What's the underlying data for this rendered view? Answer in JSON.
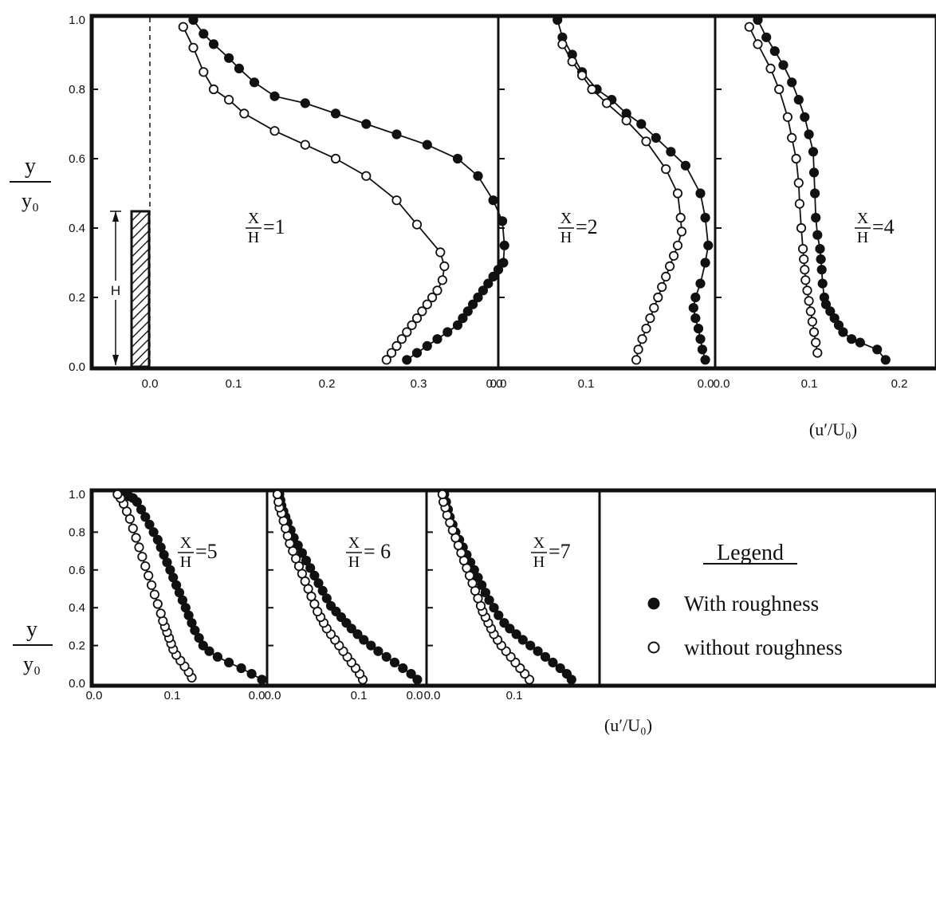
{
  "chart_data": [
    {
      "type": "line",
      "annotation": {
        "ratio_num": "X",
        "ratio_den": "H",
        "value": "=1"
      },
      "ylabel_num": "y",
      "ylabel_den": "y₀",
      "yticks": [
        "0.0",
        "0.2",
        "0.4",
        "0.6",
        "0.8",
        "1.0"
      ],
      "xticks": [
        "0.0",
        "0.1",
        "0.2",
        "0.3",
        "0.0"
      ],
      "ylim": [
        0,
        1
      ],
      "xlim": [
        -0.05,
        0.35
      ],
      "obstacle_label": "H",
      "series": [
        {
          "name": "With roughness",
          "x": [
            0.26,
            0.27,
            0.28,
            0.29,
            0.3,
            0.31,
            0.315,
            0.32,
            0.325,
            0.33,
            0.335,
            0.34,
            0.345,
            0.35,
            0.355,
            0.356,
            0.354,
            0.345,
            0.33,
            0.31,
            0.28,
            0.25,
            0.22,
            0.19,
            0.16,
            0.13,
            0.11,
            0.095,
            0.085,
            0.07,
            0.06,
            0.05
          ],
          "y": [
            0.02,
            0.04,
            0.06,
            0.08,
            0.1,
            0.12,
            0.14,
            0.16,
            0.18,
            0.2,
            0.22,
            0.24,
            0.26,
            0.28,
            0.3,
            0.35,
            0.42,
            0.48,
            0.55,
            0.6,
            0.64,
            0.67,
            0.7,
            0.73,
            0.76,
            0.78,
            0.82,
            0.86,
            0.89,
            0.93,
            0.96,
            1.0
          ]
        },
        {
          "name": "without roughness",
          "x": [
            0.24,
            0.245,
            0.25,
            0.255,
            0.26,
            0.265,
            0.27,
            0.275,
            0.28,
            0.285,
            0.29,
            0.295,
            0.297,
            0.293,
            0.27,
            0.25,
            0.22,
            0.19,
            0.16,
            0.13,
            0.1,
            0.085,
            0.07,
            0.06,
            0.05,
            0.04
          ],
          "y": [
            0.02,
            0.04,
            0.06,
            0.08,
            0.1,
            0.12,
            0.14,
            0.16,
            0.18,
            0.2,
            0.22,
            0.25,
            0.29,
            0.33,
            0.41,
            0.48,
            0.55,
            0.6,
            0.64,
            0.68,
            0.73,
            0.77,
            0.8,
            0.85,
            0.92,
            0.98
          ]
        }
      ]
    },
    {
      "type": "line",
      "annotation": {
        "ratio_num": "X",
        "ratio_den": "H",
        "value": "=2"
      },
      "xticks": [
        "0.0",
        "0.1",
        "0.0"
      ],
      "ylim": [
        0,
        1
      ],
      "xlim": [
        0,
        0.22
      ],
      "series": [
        {
          "name": "With roughness",
          "x": [
            0.21,
            0.207,
            0.205,
            0.203,
            0.2,
            0.198,
            0.2,
            0.205,
            0.21,
            0.213,
            0.21,
            0.205,
            0.19,
            0.175,
            0.16,
            0.145,
            0.13,
            0.115,
            0.1,
            0.085,
            0.075,
            0.065,
            0.06
          ],
          "y": [
            0.02,
            0.05,
            0.08,
            0.11,
            0.14,
            0.17,
            0.2,
            0.24,
            0.3,
            0.35,
            0.43,
            0.5,
            0.58,
            0.62,
            0.66,
            0.7,
            0.73,
            0.77,
            0.8,
            0.85,
            0.9,
            0.95,
            1.0
          ]
        },
        {
          "name": "without roughness",
          "x": [
            0.14,
            0.142,
            0.146,
            0.15,
            0.154,
            0.158,
            0.162,
            0.166,
            0.17,
            0.174,
            0.178,
            0.182,
            0.186,
            0.185,
            0.182,
            0.17,
            0.15,
            0.13,
            0.11,
            0.095,
            0.085,
            0.075,
            0.065
          ],
          "y": [
            0.02,
            0.05,
            0.08,
            0.11,
            0.14,
            0.17,
            0.2,
            0.23,
            0.26,
            0.29,
            0.32,
            0.35,
            0.39,
            0.43,
            0.5,
            0.57,
            0.65,
            0.71,
            0.76,
            0.8,
            0.84,
            0.88,
            0.93
          ]
        }
      ]
    },
    {
      "type": "line",
      "annotation": {
        "ratio_num": "X",
        "ratio_den": "H",
        "value": "=4"
      },
      "xticks": [
        "0.0",
        "0.1",
        "0.2"
      ],
      "xlabel": "(u′/U₀)",
      "ylim": [
        0,
        1
      ],
      "xlim": [
        0,
        0.26
      ],
      "series": [
        {
          "name": "With roughness",
          "x": [
            0.2,
            0.19,
            0.17,
            0.16,
            0.15,
            0.145,
            0.14,
            0.135,
            0.13,
            0.128,
            0.126,
            0.125,
            0.124,
            0.123,
            0.12,
            0.118,
            0.117,
            0.116,
            0.115,
            0.11,
            0.105,
            0.098,
            0.09,
            0.08,
            0.07,
            0.06,
            0.05
          ],
          "y": [
            0.02,
            0.05,
            0.07,
            0.08,
            0.1,
            0.12,
            0.14,
            0.16,
            0.18,
            0.2,
            0.24,
            0.28,
            0.31,
            0.34,
            0.38,
            0.43,
            0.5,
            0.56,
            0.62,
            0.67,
            0.72,
            0.77,
            0.82,
            0.87,
            0.91,
            0.95,
            1.0
          ]
        },
        {
          "name": "without roughness",
          "x": [
            0.12,
            0.118,
            0.116,
            0.114,
            0.112,
            0.11,
            0.108,
            0.106,
            0.105,
            0.104,
            0.103,
            0.101,
            0.099,
            0.098,
            0.095,
            0.09,
            0.085,
            0.075,
            0.065,
            0.05,
            0.04
          ],
          "y": [
            0.04,
            0.07,
            0.1,
            0.13,
            0.16,
            0.19,
            0.22,
            0.25,
            0.28,
            0.31,
            0.34,
            0.4,
            0.47,
            0.53,
            0.6,
            0.66,
            0.72,
            0.8,
            0.86,
            0.93,
            0.98
          ]
        }
      ]
    },
    {
      "type": "line",
      "annotation": {
        "ratio_num": "X",
        "ratio_den": "H",
        "value": "=5"
      },
      "ylabel_num": "y",
      "ylabel_den": "y₀",
      "yticks": [
        "0.0",
        "0.2",
        "0.4",
        "0.6",
        "0.8",
        "1.0"
      ],
      "xticks": [
        "0.0",
        "0.1",
        "0.0"
      ],
      "ylim": [
        0,
        1
      ],
      "xlim": [
        0,
        0.17
      ],
      "series": [
        {
          "name": "With roughness",
          "x": [
            0.165,
            0.155,
            0.145,
            0.133,
            0.122,
            0.114,
            0.108,
            0.104,
            0.1,
            0.097,
            0.094,
            0.091,
            0.088,
            0.085,
            0.082,
            0.079,
            0.076,
            0.073,
            0.07,
            0.067,
            0.064,
            0.06,
            0.056,
            0.052,
            0.048,
            0.044,
            0.04,
            0.036,
            0.032
          ],
          "y": [
            0.02,
            0.05,
            0.08,
            0.11,
            0.14,
            0.17,
            0.2,
            0.24,
            0.28,
            0.32,
            0.36,
            0.4,
            0.44,
            0.48,
            0.52,
            0.56,
            0.6,
            0.64,
            0.68,
            0.72,
            0.76,
            0.8,
            0.84,
            0.88,
            0.92,
            0.96,
            0.98,
            0.99,
            1.0
          ]
        },
        {
          "name": "without roughness",
          "x": [
            0.097,
            0.094,
            0.09,
            0.086,
            0.082,
            0.079,
            0.077,
            0.075,
            0.073,
            0.071,
            0.069,
            0.067,
            0.064,
            0.061,
            0.058,
            0.055,
            0.052,
            0.049,
            0.046,
            0.043,
            0.04,
            0.037,
            0.034,
            0.031,
            0.028,
            0.025
          ],
          "y": [
            0.03,
            0.06,
            0.09,
            0.12,
            0.15,
            0.18,
            0.21,
            0.24,
            0.27,
            0.3,
            0.33,
            0.37,
            0.42,
            0.47,
            0.52,
            0.57,
            0.62,
            0.67,
            0.72,
            0.77,
            0.82,
            0.87,
            0.91,
            0.95,
            0.98,
            1.0
          ]
        }
      ]
    },
    {
      "type": "line",
      "annotation": {
        "ratio_num": "X",
        "ratio_den": "H",
        "value": "= 6"
      },
      "xticks": [
        "0.0",
        "0.1",
        "0.0"
      ],
      "ylim": [
        0,
        1
      ],
      "xlim": [
        0,
        0.155
      ],
      "series": [
        {
          "name": "With roughness",
          "x": [
            0.146,
            0.14,
            0.132,
            0.124,
            0.116,
            0.108,
            0.101,
            0.094,
            0.088,
            0.082,
            0.077,
            0.072,
            0.067,
            0.062,
            0.058,
            0.054,
            0.05,
            0.046,
            0.042,
            0.038,
            0.034,
            0.03,
            0.026,
            0.023,
            0.02,
            0.018,
            0.016,
            0.014,
            0.013,
            0.012
          ],
          "y": [
            0.02,
            0.05,
            0.08,
            0.11,
            0.14,
            0.17,
            0.2,
            0.23,
            0.26,
            0.29,
            0.32,
            0.35,
            0.38,
            0.41,
            0.45,
            0.49,
            0.53,
            0.57,
            0.61,
            0.65,
            0.69,
            0.73,
            0.77,
            0.81,
            0.85,
            0.88,
            0.91,
            0.94,
            0.97,
            1.0
          ]
        },
        {
          "name": "without roughness",
          "x": [
            0.093,
            0.09,
            0.086,
            0.082,
            0.078,
            0.074,
            0.07,
            0.066,
            0.062,
            0.058,
            0.055,
            0.052,
            0.049,
            0.046,
            0.043,
            0.04,
            0.037,
            0.034,
            0.031,
            0.028,
            0.025,
            0.022,
            0.02,
            0.018,
            0.016,
            0.014,
            0.012,
            0.011,
            0.01
          ],
          "y": [
            0.02,
            0.05,
            0.08,
            0.11,
            0.14,
            0.17,
            0.2,
            0.23,
            0.26,
            0.29,
            0.32,
            0.35,
            0.38,
            0.42,
            0.46,
            0.5,
            0.54,
            0.58,
            0.62,
            0.66,
            0.7,
            0.74,
            0.78,
            0.82,
            0.86,
            0.9,
            0.93,
            0.96,
            1.0
          ]
        }
      ]
    },
    {
      "type": "line",
      "annotation": {
        "ratio_num": "X",
        "ratio_den": "H",
        "value": "=7"
      },
      "xticks": [
        "0.0",
        "0.1"
      ],
      "ylim": [
        0,
        1
      ],
      "xlim": [
        0,
        0.185
      ],
      "series": [
        {
          "name": "With roughness",
          "x": [
            0.155,
            0.15,
            0.143,
            0.135,
            0.127,
            0.119,
            0.111,
            0.103,
            0.096,
            0.089,
            0.083,
            0.077,
            0.072,
            0.067,
            0.063,
            0.059,
            0.055,
            0.051,
            0.047,
            0.043,
            0.039,
            0.035,
            0.031,
            0.028,
            0.025,
            0.023,
            0.021,
            0.019
          ],
          "y": [
            0.02,
            0.05,
            0.08,
            0.11,
            0.14,
            0.17,
            0.2,
            0.23,
            0.26,
            0.29,
            0.32,
            0.36,
            0.4,
            0.44,
            0.48,
            0.52,
            0.56,
            0.6,
            0.64,
            0.68,
            0.72,
            0.76,
            0.8,
            0.84,
            0.88,
            0.92,
            0.96,
            1.0
          ]
        },
        {
          "name": "without roughness",
          "x": [
            0.11,
            0.105,
            0.1,
            0.095,
            0.09,
            0.085,
            0.08,
            0.076,
            0.072,
            0.069,
            0.066,
            0.063,
            0.06,
            0.058,
            0.055,
            0.052,
            0.049,
            0.046,
            0.043,
            0.04,
            0.037,
            0.034,
            0.031,
            0.028,
            0.025,
            0.022,
            0.02,
            0.018,
            0.017
          ],
          "y": [
            0.02,
            0.05,
            0.08,
            0.11,
            0.14,
            0.17,
            0.2,
            0.23,
            0.26,
            0.29,
            0.32,
            0.35,
            0.38,
            0.41,
            0.45,
            0.49,
            0.53,
            0.57,
            0.61,
            0.65,
            0.69,
            0.73,
            0.77,
            0.81,
            0.85,
            0.89,
            0.93,
            0.96,
            1.0
          ]
        }
      ]
    }
  ],
  "bottom_xlabel": "(u′/U₀)",
  "legend": {
    "title": "Legend",
    "items": [
      "With roughness",
      "without roughness"
    ]
  },
  "colors": {
    "ink": "#111111",
    "hatch": "#333333"
  }
}
